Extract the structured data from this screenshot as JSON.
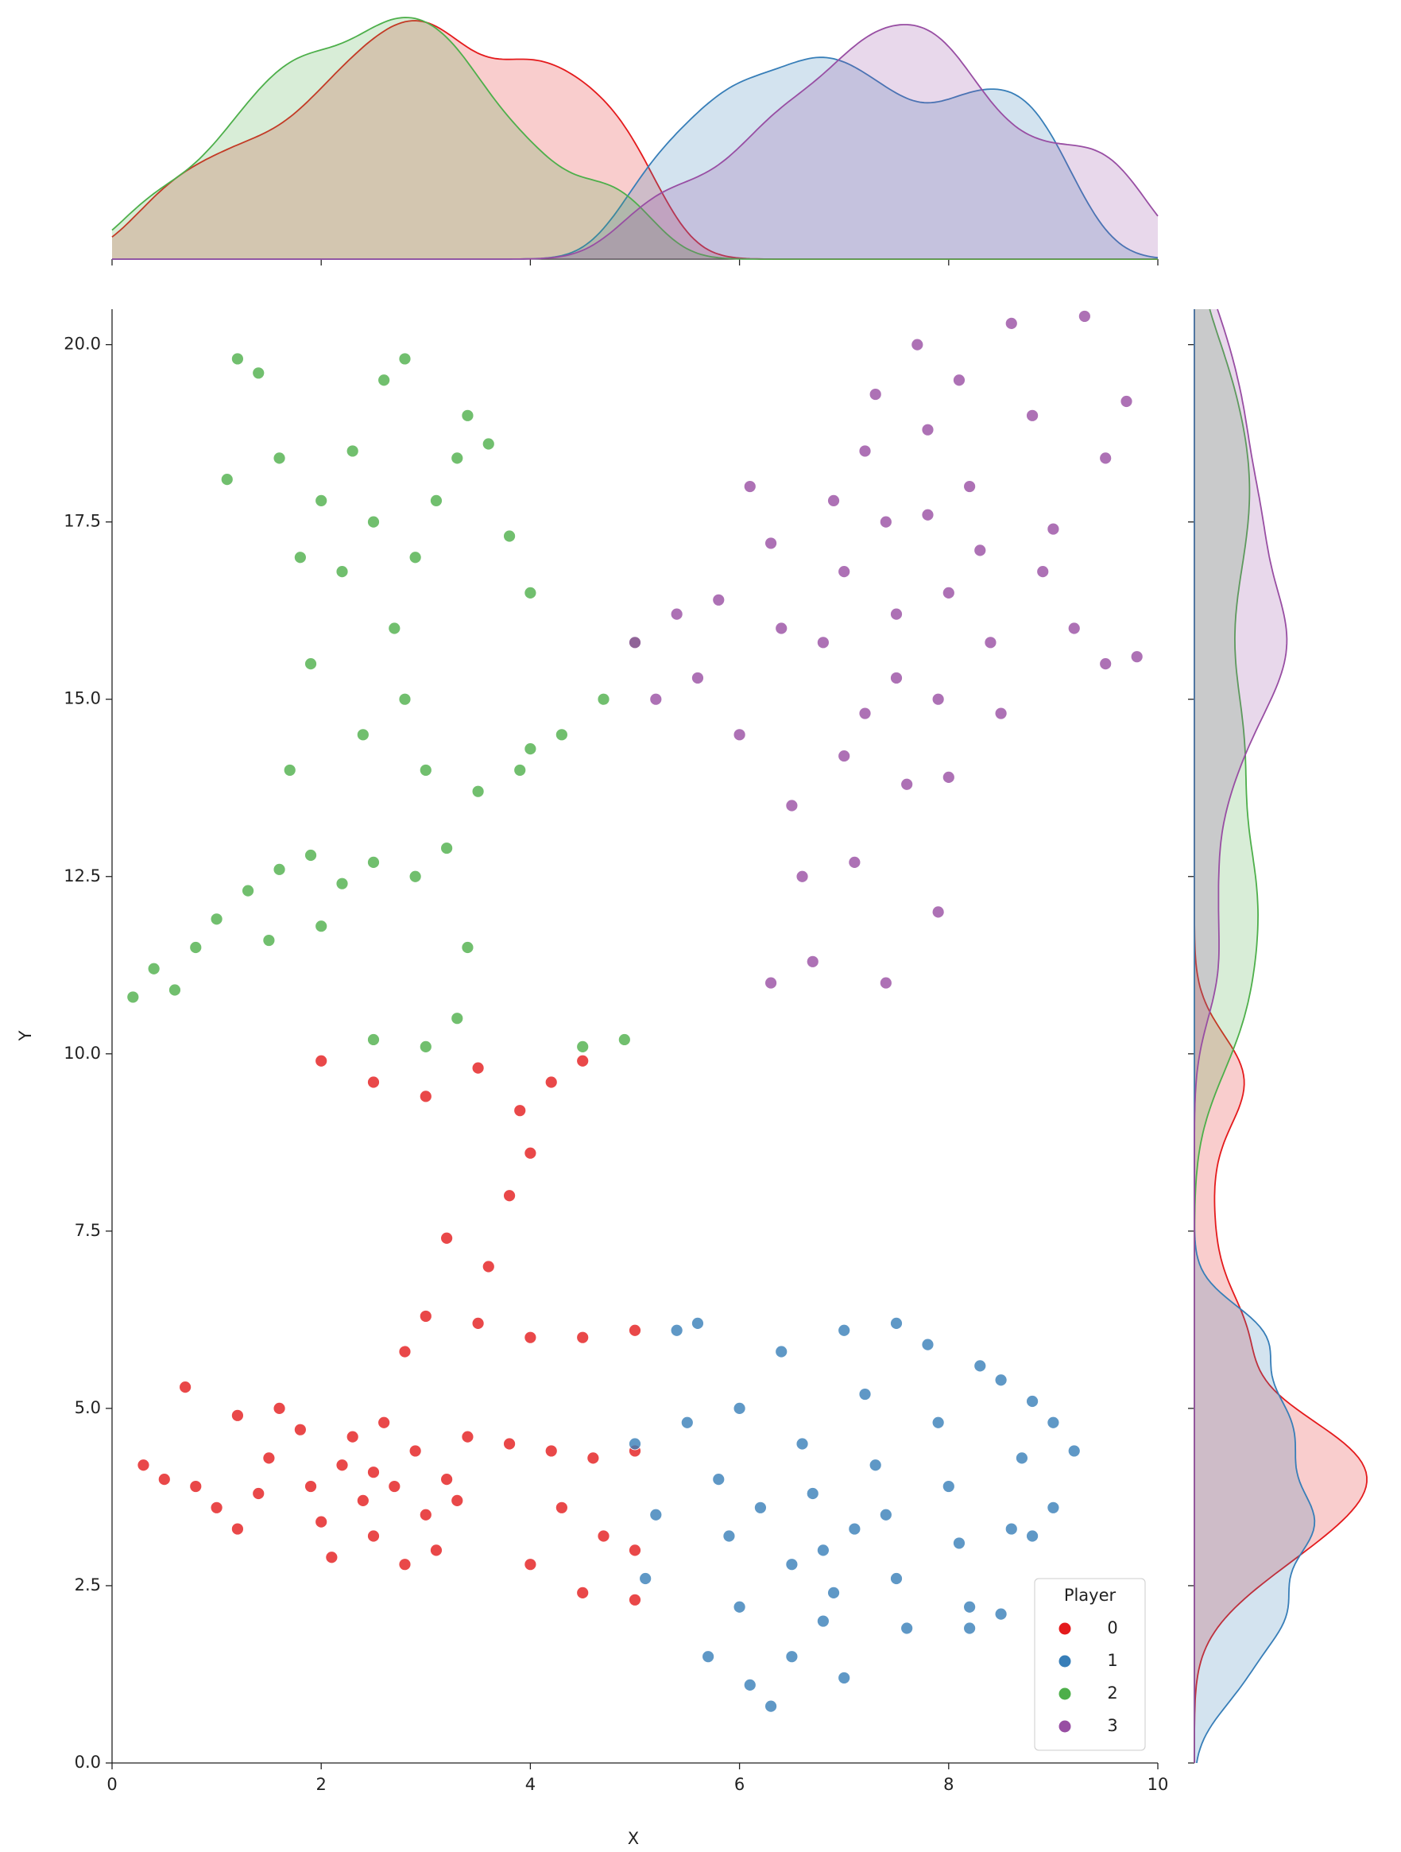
{
  "chart_data": {
    "type": "scatter",
    "x_label": "X",
    "y_label": "Y",
    "xlim": [
      0,
      10
    ],
    "ylim": [
      0,
      20.5
    ],
    "xticks": [
      0,
      2,
      4,
      6,
      8,
      10
    ],
    "yticks": [
      {
        "value": 0,
        "label": "0.0"
      },
      {
        "value": 2.5,
        "label": "2.5"
      },
      {
        "value": 5,
        "label": "5.0"
      },
      {
        "value": 7.5,
        "label": "7.5"
      },
      {
        "value": 10,
        "label": "10.0"
      },
      {
        "value": 12.5,
        "label": "12.5"
      },
      {
        "value": 15,
        "label": "15.0"
      },
      {
        "value": 17.5,
        "label": "17.5"
      },
      {
        "value": 20,
        "label": "20.0"
      }
    ],
    "legend_title": "Player",
    "legend": "lower right",
    "marginal": "kde",
    "series": [
      {
        "name": "0",
        "color": "#e41a1c",
        "x": [
          0.3,
          0.5,
          0.8,
          1.0,
          1.2,
          1.4,
          1.5,
          1.6,
          1.8,
          1.9,
          2.0,
          2.1,
          2.2,
          2.3,
          2.4,
          2.5,
          2.5,
          2.6,
          2.7,
          2.8,
          2.9,
          3.0,
          3.1,
          3.2,
          3.3,
          0.7,
          1.2,
          3.4,
          3.8,
          4.2,
          4.6,
          5.0,
          4.3,
          4.7,
          5.0,
          4.0,
          4.5,
          5.0,
          3.5,
          4.0,
          4.5,
          5.0,
          3.0,
          3.2,
          3.6,
          3.8,
          4.0,
          3.9,
          4.2,
          3.0,
          2.5,
          2.0,
          3.5,
          4.5,
          2.8
        ],
        "y": [
          4.2,
          4.0,
          3.9,
          3.6,
          3.3,
          3.8,
          4.3,
          5.0,
          4.7,
          3.9,
          3.4,
          2.9,
          4.2,
          4.6,
          3.7,
          4.1,
          3.2,
          4.8,
          3.9,
          2.8,
          4.4,
          3.5,
          3.0,
          4.0,
          3.7,
          5.3,
          4.9,
          4.6,
          4.5,
          4.4,
          4.3,
          4.4,
          3.6,
          3.2,
          3.0,
          2.8,
          2.4,
          2.3,
          6.2,
          6.0,
          6.0,
          6.1,
          6.3,
          7.4,
          7.0,
          8.0,
          8.6,
          9.2,
          9.6,
          9.4,
          9.6,
          9.9,
          9.8,
          9.9,
          5.8
        ]
      },
      {
        "name": "1",
        "color": "#377eb8",
        "x": [
          5.0,
          5.2,
          5.1,
          5.4,
          5.6,
          5.5,
          5.8,
          5.9,
          6.0,
          6.1,
          6.3,
          6.5,
          6.4,
          6.6,
          6.7,
          6.8,
          6.9,
          7.0,
          7.0,
          7.2,
          7.3,
          7.4,
          7.5,
          7.6,
          7.5,
          7.8,
          7.9,
          8.0,
          8.1,
          8.2,
          8.3,
          8.5,
          8.6,
          8.7,
          8.8,
          9.0,
          9.2,
          9.0,
          8.8,
          8.5,
          8.2,
          6.2,
          6.5,
          7.1,
          5.7,
          6.0,
          6.8
        ],
        "y": [
          4.5,
          3.5,
          2.6,
          6.1,
          6.2,
          4.8,
          4.0,
          3.2,
          2.2,
          1.1,
          0.8,
          1.5,
          5.8,
          4.5,
          3.8,
          3.0,
          2.4,
          1.2,
          6.1,
          5.2,
          4.2,
          3.5,
          2.6,
          1.9,
          6.2,
          5.9,
          4.8,
          3.9,
          3.1,
          2.2,
          5.6,
          5.4,
          3.3,
          4.3,
          5.1,
          4.8,
          4.4,
          3.6,
          3.2,
          2.1,
          1.9,
          3.6,
          2.8,
          3.3,
          1.5,
          5.0,
          2.0
        ]
      },
      {
        "name": "2",
        "color": "#4daf4a",
        "x": [
          0.2,
          0.4,
          0.6,
          0.8,
          1.0,
          1.3,
          1.6,
          1.9,
          2.2,
          1.5,
          2.0,
          2.5,
          2.9,
          3.2,
          3.4,
          3.3,
          3.0,
          2.5,
          4.5,
          4.9,
          3.5,
          3.9,
          4.3,
          4.7,
          5.0,
          4.0,
          3.0,
          2.8,
          2.7,
          2.9,
          3.1,
          3.3,
          3.6,
          3.8,
          4.0,
          2.5,
          2.3,
          2.0,
          1.8,
          1.6,
          1.4,
          1.1,
          1.7,
          1.9,
          2.2,
          2.6,
          2.8,
          2.4,
          3.4,
          1.2
        ],
        "y": [
          10.8,
          11.2,
          10.9,
          11.5,
          11.9,
          12.3,
          12.6,
          12.8,
          12.4,
          11.6,
          11.8,
          12.7,
          12.5,
          12.9,
          11.5,
          10.5,
          10.1,
          10.2,
          10.1,
          10.2,
          13.7,
          14.0,
          14.5,
          15.0,
          15.8,
          14.3,
          14.0,
          15.0,
          16.0,
          17.0,
          17.8,
          18.4,
          18.6,
          17.3,
          16.5,
          17.5,
          18.5,
          17.8,
          17.0,
          18.4,
          19.6,
          18.1,
          14.0,
          15.5,
          16.8,
          19.5,
          19.8,
          14.5,
          19.0,
          19.8
        ]
      },
      {
        "name": "3",
        "color": "#984ea3",
        "x": [
          5.0,
          5.4,
          5.8,
          5.2,
          5.6,
          6.0,
          6.1,
          6.3,
          6.4,
          6.5,
          6.6,
          6.3,
          6.7,
          6.9,
          7.0,
          7.0,
          7.1,
          7.2,
          7.3,
          7.4,
          7.5,
          7.5,
          7.6,
          7.4,
          7.7,
          7.8,
          7.8,
          7.9,
          8.0,
          7.9,
          8.1,
          8.2,
          8.3,
          8.4,
          8.5,
          8.6,
          8.8,
          9.0,
          9.2,
          9.5,
          9.8,
          9.5,
          9.7,
          9.3,
          8.9,
          7.2,
          6.8,
          8.0
        ],
        "y": [
          15.8,
          16.2,
          16.4,
          15.0,
          15.3,
          14.5,
          18.0,
          17.2,
          16.0,
          13.5,
          12.5,
          11.0,
          11.3,
          17.8,
          16.8,
          14.2,
          12.7,
          18.5,
          19.3,
          17.5,
          16.2,
          15.3,
          13.8,
          11.0,
          20.0,
          18.8,
          17.6,
          15.0,
          13.9,
          12.0,
          19.5,
          18.0,
          17.1,
          15.8,
          14.8,
          20.3,
          19.0,
          17.4,
          16.0,
          15.5,
          15.6,
          18.4,
          19.2,
          20.4,
          16.8,
          14.8,
          15.8,
          16.5
        ]
      }
    ]
  }
}
